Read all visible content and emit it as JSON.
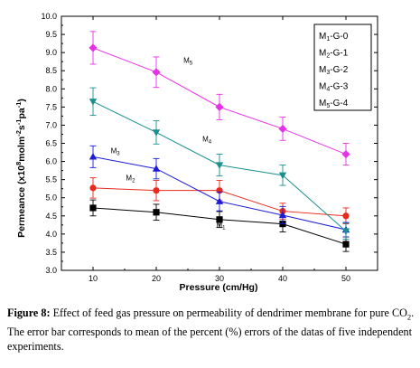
{
  "chart_data": {
    "type": "line",
    "xlabel": "Pressure (cm/Hg)",
    "ylabel_parts": [
      "Permeance (x10",
      "8",
      "molm",
      "-2",
      "s",
      "-1",
      "pa",
      "-1",
      ")"
    ],
    "xlim": [
      5,
      55
    ],
    "ylim": [
      3.0,
      10.0
    ],
    "x": [
      10,
      20,
      30,
      40,
      50
    ],
    "x_ticks": [
      "10",
      "20",
      "30",
      "40",
      "50"
    ],
    "y_ticks": [
      "3.0",
      "3.5",
      "4.0",
      "4.5",
      "5.0",
      "5.5",
      "6.0",
      "6.5",
      "7.0",
      "7.5",
      "8.0",
      "8.5",
      "9.0",
      "9.5",
      "10.0"
    ],
    "series": [
      {
        "name": "M1-G-0",
        "legend_main": "M",
        "legend_sub": "1",
        "legend_rest": "-G-0",
        "label": "M1",
        "label_main": "M",
        "label_sub": "1",
        "color": "#000000",
        "marker": "square",
        "values": [
          4.72,
          4.6,
          4.4,
          4.28,
          3.72
        ],
        "errors": [
          0.22,
          0.22,
          0.22,
          0.22,
          0.2
        ]
      },
      {
        "name": "M2-G-1",
        "legend_main": "M",
        "legend_sub": "2",
        "legend_rest": "-G-1",
        "label": "M2",
        "label_main": "M",
        "label_sub": "2",
        "color": "#e8291c",
        "marker": "circle",
        "values": [
          5.27,
          5.2,
          5.2,
          4.63,
          4.5
        ],
        "errors": [
          0.28,
          0.28,
          0.28,
          0.22,
          0.22
        ]
      },
      {
        "name": "M3-G-2",
        "legend_main": "M",
        "legend_sub": "3",
        "legend_rest": "-G-2",
        "label": "M3",
        "label_main": "M",
        "label_sub": "3",
        "color": "#1c1cd6",
        "marker": "triangle-up",
        "values": [
          6.13,
          5.8,
          4.9,
          4.52,
          4.12
        ],
        "errors": [
          0.3,
          0.28,
          0.26,
          0.24,
          0.2
        ]
      },
      {
        "name": "M4-G-3",
        "legend_main": "M",
        "legend_sub": "4",
        "legend_rest": "-G-3",
        "label": "M4",
        "label_main": "M",
        "label_sub": "4",
        "color": "#1a8f8f",
        "marker": "triangle-down",
        "values": [
          7.65,
          6.8,
          5.9,
          5.62,
          4.08
        ],
        "errors": [
          0.38,
          0.32,
          0.3,
          0.28,
          0.22
        ]
      },
      {
        "name": "M5-G-4",
        "legend_main": "M",
        "legend_sub": "5",
        "legend_rest": "-G-4",
        "label": "M5",
        "label_main": "M",
        "label_sub": "5",
        "color": "#e632e6",
        "marker": "diamond",
        "values": [
          9.13,
          8.46,
          7.5,
          6.9,
          6.2
        ],
        "errors": [
          0.45,
          0.42,
          0.35,
          0.32,
          0.3
        ]
      }
    ],
    "annotations": [
      {
        "series": "M1",
        "x": 29.5,
        "y": 4.18
      },
      {
        "series": "M2",
        "x": 15.2,
        "y": 5.48
      },
      {
        "series": "M3",
        "x": 12.8,
        "y": 6.23
      },
      {
        "series": "M4",
        "x": 27.3,
        "y": 6.55
      },
      {
        "series": "M5",
        "x": 24.3,
        "y": 8.72
      }
    ],
    "legend_placement": "top-right",
    "grid": false
  },
  "caption": {
    "label": "Figure 8:",
    "text_before_sub": " Effect of feed gas pressure on permeability of dendrimer membrane for pure CO",
    "sub": "2",
    "text_after_sub": ". The error bar corresponds to mean of the percent (%) errors of the datas of five independent experiments."
  }
}
